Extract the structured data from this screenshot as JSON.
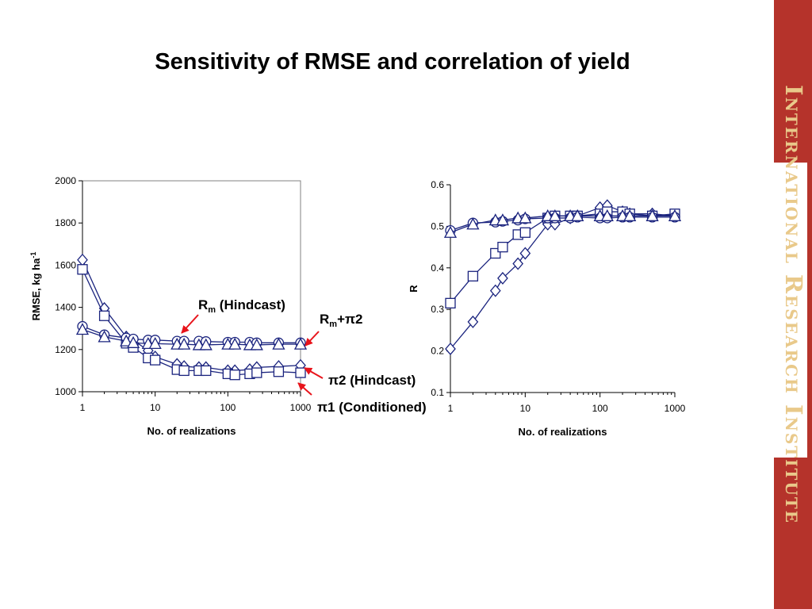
{
  "slide": {
    "title": "Sensitivity of RMSE and correlation of yield",
    "banner_text": "International Research Institute",
    "banner_color": "#b5332b",
    "banner_text_color": "#e9c98a"
  },
  "annotations": {
    "rm_hindcast": "R",
    "rm_hindcast_sub": "m",
    "rm_hindcast_rest": " (Hindcast)",
    "rm_pi2": "R",
    "rm_pi2_sub": "m",
    "rm_pi2_rest": "+π2",
    "pi2_hindcast": "π2 (Hindcast)",
    "pi1_conditioned": "π1 (Conditioned)",
    "arrow_color": "#e8141b"
  },
  "chart_data": [
    {
      "type": "line",
      "xlabel": "No. of realizations",
      "ylabel": "RMSE, kg ha",
      "ylabel_sup": "-1",
      "xscale": "log",
      "xlim": [
        1,
        1000
      ],
      "ylim": [
        1000,
        2000
      ],
      "xticks": [
        "1",
        "10",
        "100",
        "1000"
      ],
      "yticks": [
        "1000",
        "1200",
        "1400",
        "1600",
        "1800",
        "2000"
      ],
      "grid": false,
      "legend": "none",
      "line_color": "#1a237e",
      "series": [
        {
          "marker": "diamond",
          "x": [
            1,
            2,
            4,
            5,
            8,
            10,
            20,
            25,
            40,
            50,
            100,
            125,
            200,
            250,
            500,
            1000
          ],
          "y": [
            1625,
            1395,
            1260,
            1245,
            1195,
            1165,
            1130,
            1120,
            1115,
            1115,
            1100,
            1100,
            1105,
            1115,
            1120,
            1125
          ]
        },
        {
          "marker": "square",
          "x": [
            1,
            2,
            4,
            5,
            8,
            10,
            20,
            25,
            40,
            50,
            100,
            125,
            200,
            250,
            500,
            1000
          ],
          "y": [
            1580,
            1360,
            1230,
            1210,
            1160,
            1150,
            1105,
            1100,
            1100,
            1100,
            1085,
            1080,
            1085,
            1090,
            1095,
            1090
          ]
        },
        {
          "marker": "circle",
          "x": [
            1,
            2,
            4,
            5,
            8,
            10,
            20,
            25,
            40,
            50,
            100,
            125,
            200,
            250,
            500,
            1000
          ],
          "y": [
            1310,
            1270,
            1255,
            1250,
            1245,
            1245,
            1240,
            1240,
            1240,
            1238,
            1235,
            1235,
            1235,
            1232,
            1232,
            1232
          ]
        },
        {
          "marker": "triangle",
          "x": [
            1,
            2,
            4,
            5,
            8,
            10,
            20,
            25,
            40,
            50,
            100,
            125,
            200,
            250,
            500,
            1000
          ],
          "y": [
            1295,
            1260,
            1240,
            1232,
            1228,
            1228,
            1225,
            1225,
            1222,
            1222,
            1225,
            1225,
            1222,
            1222,
            1225,
            1225
          ]
        }
      ]
    },
    {
      "type": "line",
      "xlabel": "No. of realizations",
      "ylabel": "R",
      "xscale": "log",
      "xlim": [
        1,
        1000
      ],
      "ylim": [
        0.1,
        0.6
      ],
      "xticks": [
        "1",
        "10",
        "100",
        "1000"
      ],
      "yticks": [
        "0.1",
        "0.2",
        "0.3",
        "0.4",
        "0.5",
        "0.6"
      ],
      "grid": false,
      "legend": "none",
      "line_color": "#1a237e",
      "series": [
        {
          "marker": "diamond",
          "x": [
            1,
            2,
            4,
            5,
            8,
            10,
            20,
            25,
            40,
            50,
            100,
            125,
            200,
            250,
            500,
            1000
          ],
          "y": [
            0.205,
            0.27,
            0.345,
            0.375,
            0.41,
            0.435,
            0.505,
            0.505,
            0.52,
            0.525,
            0.545,
            0.55,
            0.535,
            0.53,
            0.53,
            0.525
          ]
        },
        {
          "marker": "square",
          "x": [
            1,
            2,
            4,
            5,
            8,
            10,
            20,
            25,
            40,
            50,
            100,
            125,
            200,
            250,
            500,
            1000
          ],
          "y": [
            0.315,
            0.38,
            0.435,
            0.45,
            0.48,
            0.485,
            0.52,
            0.525,
            0.525,
            0.525,
            0.53,
            0.535,
            0.535,
            0.53,
            0.525,
            0.53
          ]
        },
        {
          "marker": "circle",
          "x": [
            1,
            2,
            4,
            5,
            8,
            10,
            20,
            25,
            40,
            50,
            100,
            125,
            200,
            250,
            500,
            1000
          ],
          "y": [
            0.49,
            0.508,
            0.51,
            0.512,
            0.515,
            0.518,
            0.52,
            0.52,
            0.52,
            0.522,
            0.52,
            0.52,
            0.522,
            0.522,
            0.522,
            0.522
          ]
        },
        {
          "marker": "triangle",
          "x": [
            1,
            2,
            4,
            5,
            8,
            10,
            20,
            25,
            40,
            50,
            100,
            125,
            200,
            250,
            500,
            1000
          ],
          "y": [
            0.485,
            0.505,
            0.515,
            0.515,
            0.52,
            0.52,
            0.525,
            0.525,
            0.525,
            0.525,
            0.525,
            0.525,
            0.525,
            0.525,
            0.525,
            0.525
          ]
        }
      ]
    }
  ]
}
